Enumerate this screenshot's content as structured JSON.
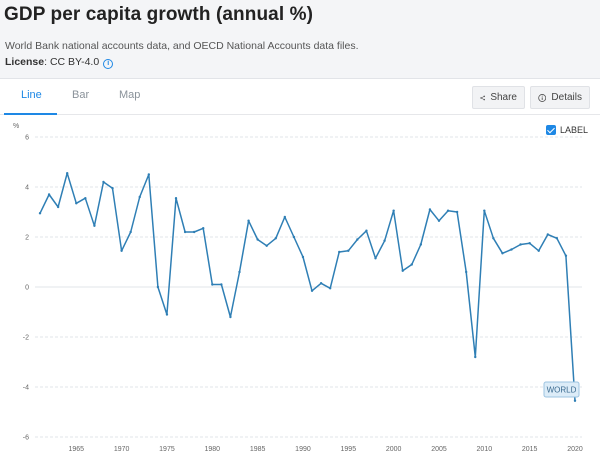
{
  "header": {
    "title": "GDP per capita growth (annual %)",
    "source": "World Bank national accounts data, and OECD National Accounts data files.",
    "license_label": "License",
    "license_value": ": CC BY-4.0",
    "info_icon": "info-icon"
  },
  "tabs": [
    {
      "label": "Line",
      "active": true
    },
    {
      "label": "Bar",
      "active": false
    },
    {
      "label": "Map",
      "active": false
    }
  ],
  "toolbar": {
    "share_label": "Share",
    "share_icon": "share-icon",
    "details_label": "Details",
    "details_icon": "info-icon"
  },
  "label_toggle": {
    "text": "LABEL",
    "checked": true
  },
  "colors": {
    "accent": "#1e88e5",
    "line": "#2f7fb5",
    "tag_bg": "#dcecf8"
  },
  "chart_data": {
    "type": "line",
    "y_unit": "%",
    "ylim": [
      -6,
      6
    ],
    "yticks": [
      -6,
      -4,
      -2,
      0,
      2,
      4,
      6
    ],
    "xlim": [
      1961,
      2020
    ],
    "xticks": [
      1965,
      1970,
      1975,
      1980,
      1985,
      1990,
      1995,
      2000,
      2005,
      2010,
      2015,
      2020
    ],
    "grid": true,
    "series": [
      {
        "name": "WORLD",
        "x": [
          1961,
          1962,
          1963,
          1964,
          1965,
          1966,
          1967,
          1968,
          1969,
          1970,
          1971,
          1972,
          1973,
          1974,
          1975,
          1976,
          1977,
          1978,
          1979,
          1980,
          1981,
          1982,
          1983,
          1984,
          1985,
          1986,
          1987,
          1988,
          1989,
          1990,
          1991,
          1992,
          1993,
          1994,
          1995,
          1996,
          1997,
          1998,
          1999,
          2000,
          2001,
          2002,
          2003,
          2004,
          2005,
          2006,
          2007,
          2008,
          2009,
          2010,
          2011,
          2012,
          2013,
          2014,
          2015,
          2016,
          2017,
          2018,
          2019,
          2020
        ],
        "values": [
          2.95,
          3.7,
          3.2,
          4.55,
          3.35,
          3.55,
          2.45,
          4.2,
          3.95,
          1.45,
          2.2,
          3.6,
          4.5,
          0.0,
          -1.1,
          3.55,
          2.2,
          2.2,
          2.35,
          0.1,
          0.1,
          -1.2,
          0.6,
          2.65,
          1.9,
          1.65,
          1.95,
          2.8,
          2.0,
          1.2,
          -0.15,
          0.15,
          -0.05,
          1.4,
          1.45,
          1.9,
          2.25,
          1.15,
          1.85,
          3.05,
          0.65,
          0.9,
          1.7,
          3.1,
          2.65,
          3.05,
          3.0,
          0.6,
          -2.8,
          3.05,
          1.95,
          1.35,
          1.5,
          1.7,
          1.75,
          1.45,
          2.1,
          1.95,
          1.25,
          -4.55
        ]
      }
    ]
  }
}
